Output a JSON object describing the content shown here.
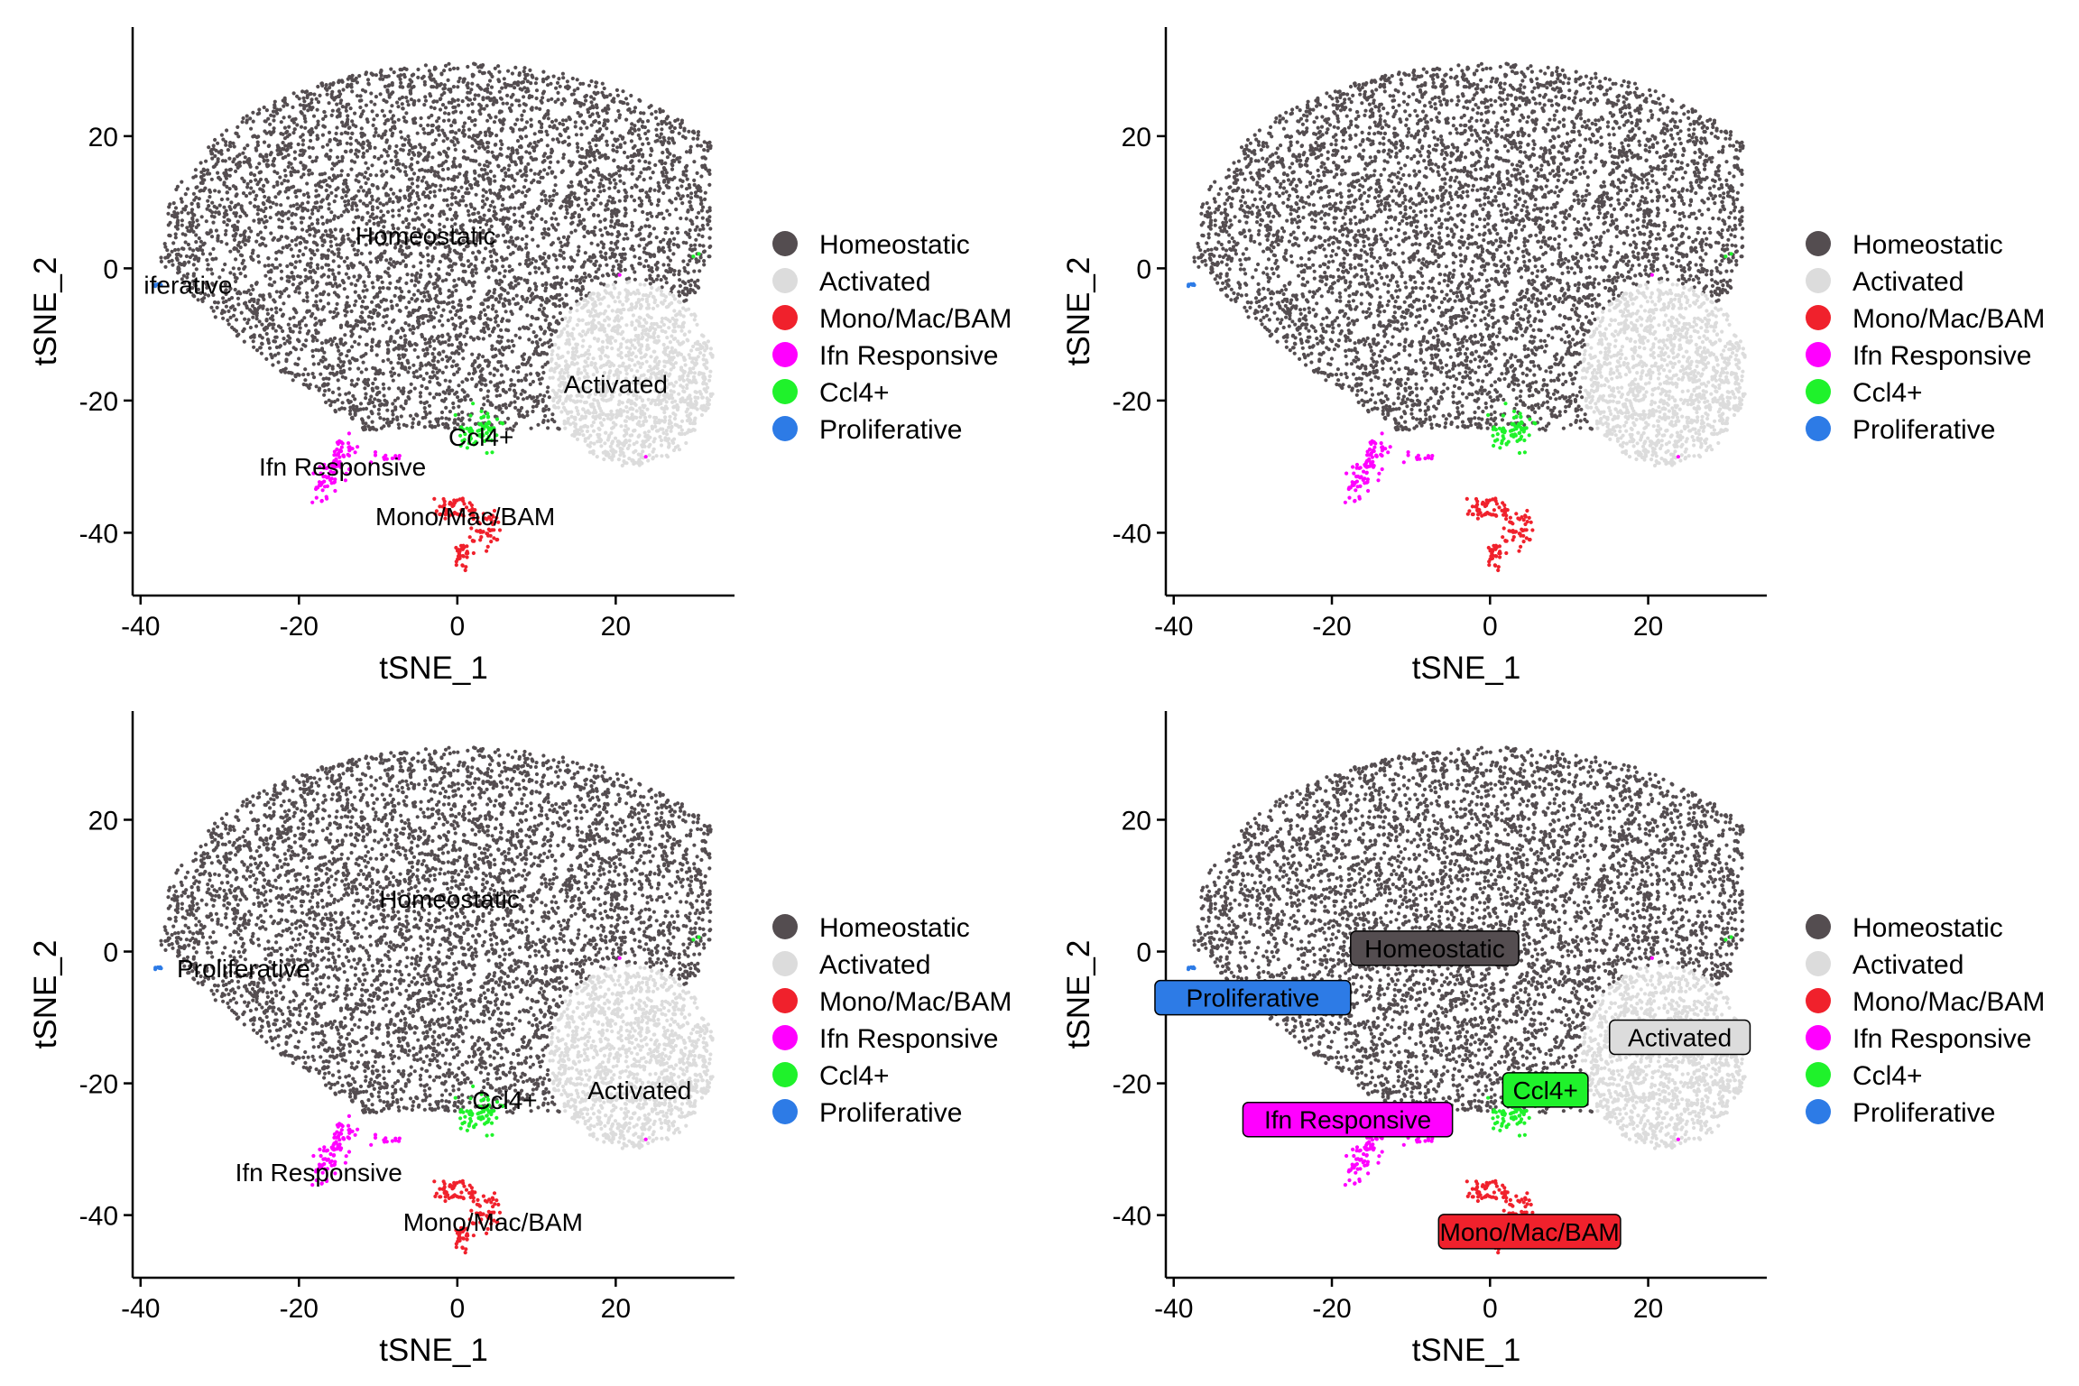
{
  "clusters": [
    {
      "name": "Homeostatic",
      "color": "#544d50"
    },
    {
      "name": "Activated",
      "color": "#dcdcdc"
    },
    {
      "name": "Mono/Mac/BAM",
      "color": "#f0212c"
    },
    {
      "name": "Ifn Responsive",
      "color": "#ff00ff"
    },
    {
      "name": "Ccl4+",
      "color": "#1ff22b"
    },
    {
      "name": "Proliferative",
      "color": "#2d7be6"
    }
  ],
  "chart_data": [
    {
      "type": "scatter",
      "xlabel": "tSNE_1",
      "ylabel": "tSNE_2",
      "xticks": [
        -40,
        -20,
        0,
        20
      ],
      "yticks": [
        20,
        0,
        -20,
        -40
      ],
      "xlim": [
        -41,
        35
      ],
      "ylim": [
        -49.5,
        36.5
      ],
      "legend": "right",
      "label_style": "plain",
      "labels": [
        {
          "text": "Homeostatic",
          "x": -4,
          "y": 5
        },
        {
          "text": "iferative",
          "x": -34,
          "y": -2.5
        },
        {
          "text": "Activated",
          "x": 20,
          "y": -17.5
        },
        {
          "text": "Ccl4+",
          "x": 3,
          "y": -25.5
        },
        {
          "text": "Ifn Responsive",
          "x": -14.5,
          "y": -30
        },
        {
          "text": "Mono/Mac/BAM",
          "x": 1,
          "y": -37.5
        }
      ]
    },
    {
      "type": "scatter",
      "xlabel": "tSNE_1",
      "ylabel": "tSNE_2",
      "xticks": [
        -40,
        -20,
        0,
        20
      ],
      "yticks": [
        20,
        0,
        -20,
        -40
      ],
      "xlim": [
        -41,
        35
      ],
      "ylim": [
        -49.5,
        36.5
      ],
      "legend": "right",
      "label_style": "none",
      "labels": []
    },
    {
      "type": "scatter",
      "xlabel": "tSNE_1",
      "ylabel": "tSNE_2",
      "xticks": [
        -40,
        -20,
        0,
        20
      ],
      "yticks": [
        20,
        0,
        -20,
        -40
      ],
      "xlim": [
        -41,
        35
      ],
      "ylim": [
        -49.5,
        36.5
      ],
      "legend": "right",
      "label_style": "plain",
      "labels": [
        {
          "text": "Homeostatic",
          "x": -1,
          "y": 8
        },
        {
          "text": "Proliferative",
          "x": -27,
          "y": -2.5
        },
        {
          "text": "Activated",
          "x": 23,
          "y": -21
        },
        {
          "text": "Ccl4+",
          "x": 6,
          "y": -22.5
        },
        {
          "text": "Ifn Responsive",
          "x": -17.5,
          "y": -33.5
        },
        {
          "text": "Mono/Mac/BAM",
          "x": 4.5,
          "y": -41
        }
      ]
    },
    {
      "type": "scatter",
      "xlabel": "tSNE_1",
      "ylabel": "tSNE_2",
      "xticks": [
        -40,
        -20,
        0,
        20
      ],
      "yticks": [
        20,
        0,
        -20,
        -40
      ],
      "xlim": [
        -41,
        35
      ],
      "ylim": [
        -49.5,
        36.5
      ],
      "legend": "right",
      "label_style": "boxed",
      "labels": [
        {
          "text": "Homeostatic",
          "x": -7,
          "y": 0.5
        },
        {
          "text": "Proliferative",
          "x": -30,
          "y": -7
        },
        {
          "text": "Activated",
          "x": 24,
          "y": -13
        },
        {
          "text": "Ccl4+",
          "x": 7,
          "y": -21
        },
        {
          "text": "Ifn Responsive",
          "x": -18,
          "y": -25.5
        },
        {
          "text": "Mono/Mac/BAM",
          "x": 5,
          "y": -42.5
        }
      ]
    }
  ]
}
